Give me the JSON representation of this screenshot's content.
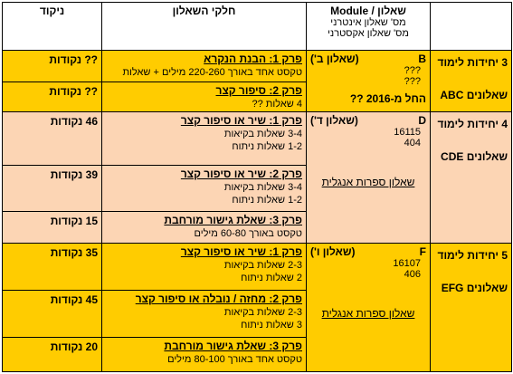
{
  "header": {
    "score": "ניקוד",
    "parts": "חלקי השאלון",
    "module": "שאלון / Module",
    "internal": "מס' שאלון אינטרני",
    "external": "מס' שאלון אקסטרני"
  },
  "sections": [
    {
      "level": "3 יחידות לימוד",
      "questionnaires": "שאלונים ABC",
      "module": {
        "code": "B",
        "name": "(שאלון ב')",
        "internal": "???",
        "external": "???",
        "note": "החל מ-2016 ??"
      },
      "parts": [
        {
          "title": "פרק 1: הבנת הנקרא",
          "lines": [
            "טקסט אחד באורך 220-260 מילים + שאלות"
          ],
          "score": "?? נקודות"
        },
        {
          "title": "פרק 2: סיפור קצר",
          "lines": [
            "4 שאלות ??"
          ],
          "score": "?? נקודות"
        }
      ]
    },
    {
      "level": "4 יחידות לימוד",
      "questionnaires": "שאלונים CDE",
      "module": {
        "code": "D",
        "name": "(שאלון ד')",
        "internal": "16115",
        "external": "404",
        "literature": "שאלון ספרות אנגלית"
      },
      "parts": [
        {
          "title": "פרק 1: שיר או סיפור קצר",
          "lines": [
            "3-4 שאלות בקיאות",
            "1-2 שאלות ניתוח"
          ],
          "score": "46 נקודות"
        },
        {
          "title": "פרק 2: שיר או סיפור קצר",
          "lines": [
            "3-4 שאלות בקיאות",
            "1-2 שאלות ניתוח"
          ],
          "score": "39 נקודות"
        },
        {
          "title": "פרק 3: שאלת גישור מורחבת",
          "lines": [
            "טקסט באורך 60-80 מילים"
          ],
          "score": "15 נקודות"
        }
      ]
    },
    {
      "level": "5 יחידות לימוד",
      "questionnaires": "שאלונים EFG",
      "module": {
        "code": "F",
        "name": "(שאלון ו')",
        "internal": "16107",
        "external": "406",
        "literature": "שאלון ספרות אנגלית"
      },
      "parts": [
        {
          "title": "פרק 1: שיר או סיפור קצר",
          "lines": [
            "2-3 שאלות בקיאות",
            "2 שאלות ניתוח"
          ],
          "score": "35 נקודות"
        },
        {
          "title": "פרק 2: מחזה / נובלה או סיפור קצר",
          "lines": [
            "2-3 שאלות בקיאות",
            "3 שאלות ניתוח"
          ],
          "score": "45 נקודות"
        },
        {
          "title": "פרק 3: שאלת גישור מורחבת",
          "lines": [
            "טקסט אחד באורך 80-100 מילים"
          ],
          "score": "20 נקודות"
        }
      ]
    }
  ]
}
